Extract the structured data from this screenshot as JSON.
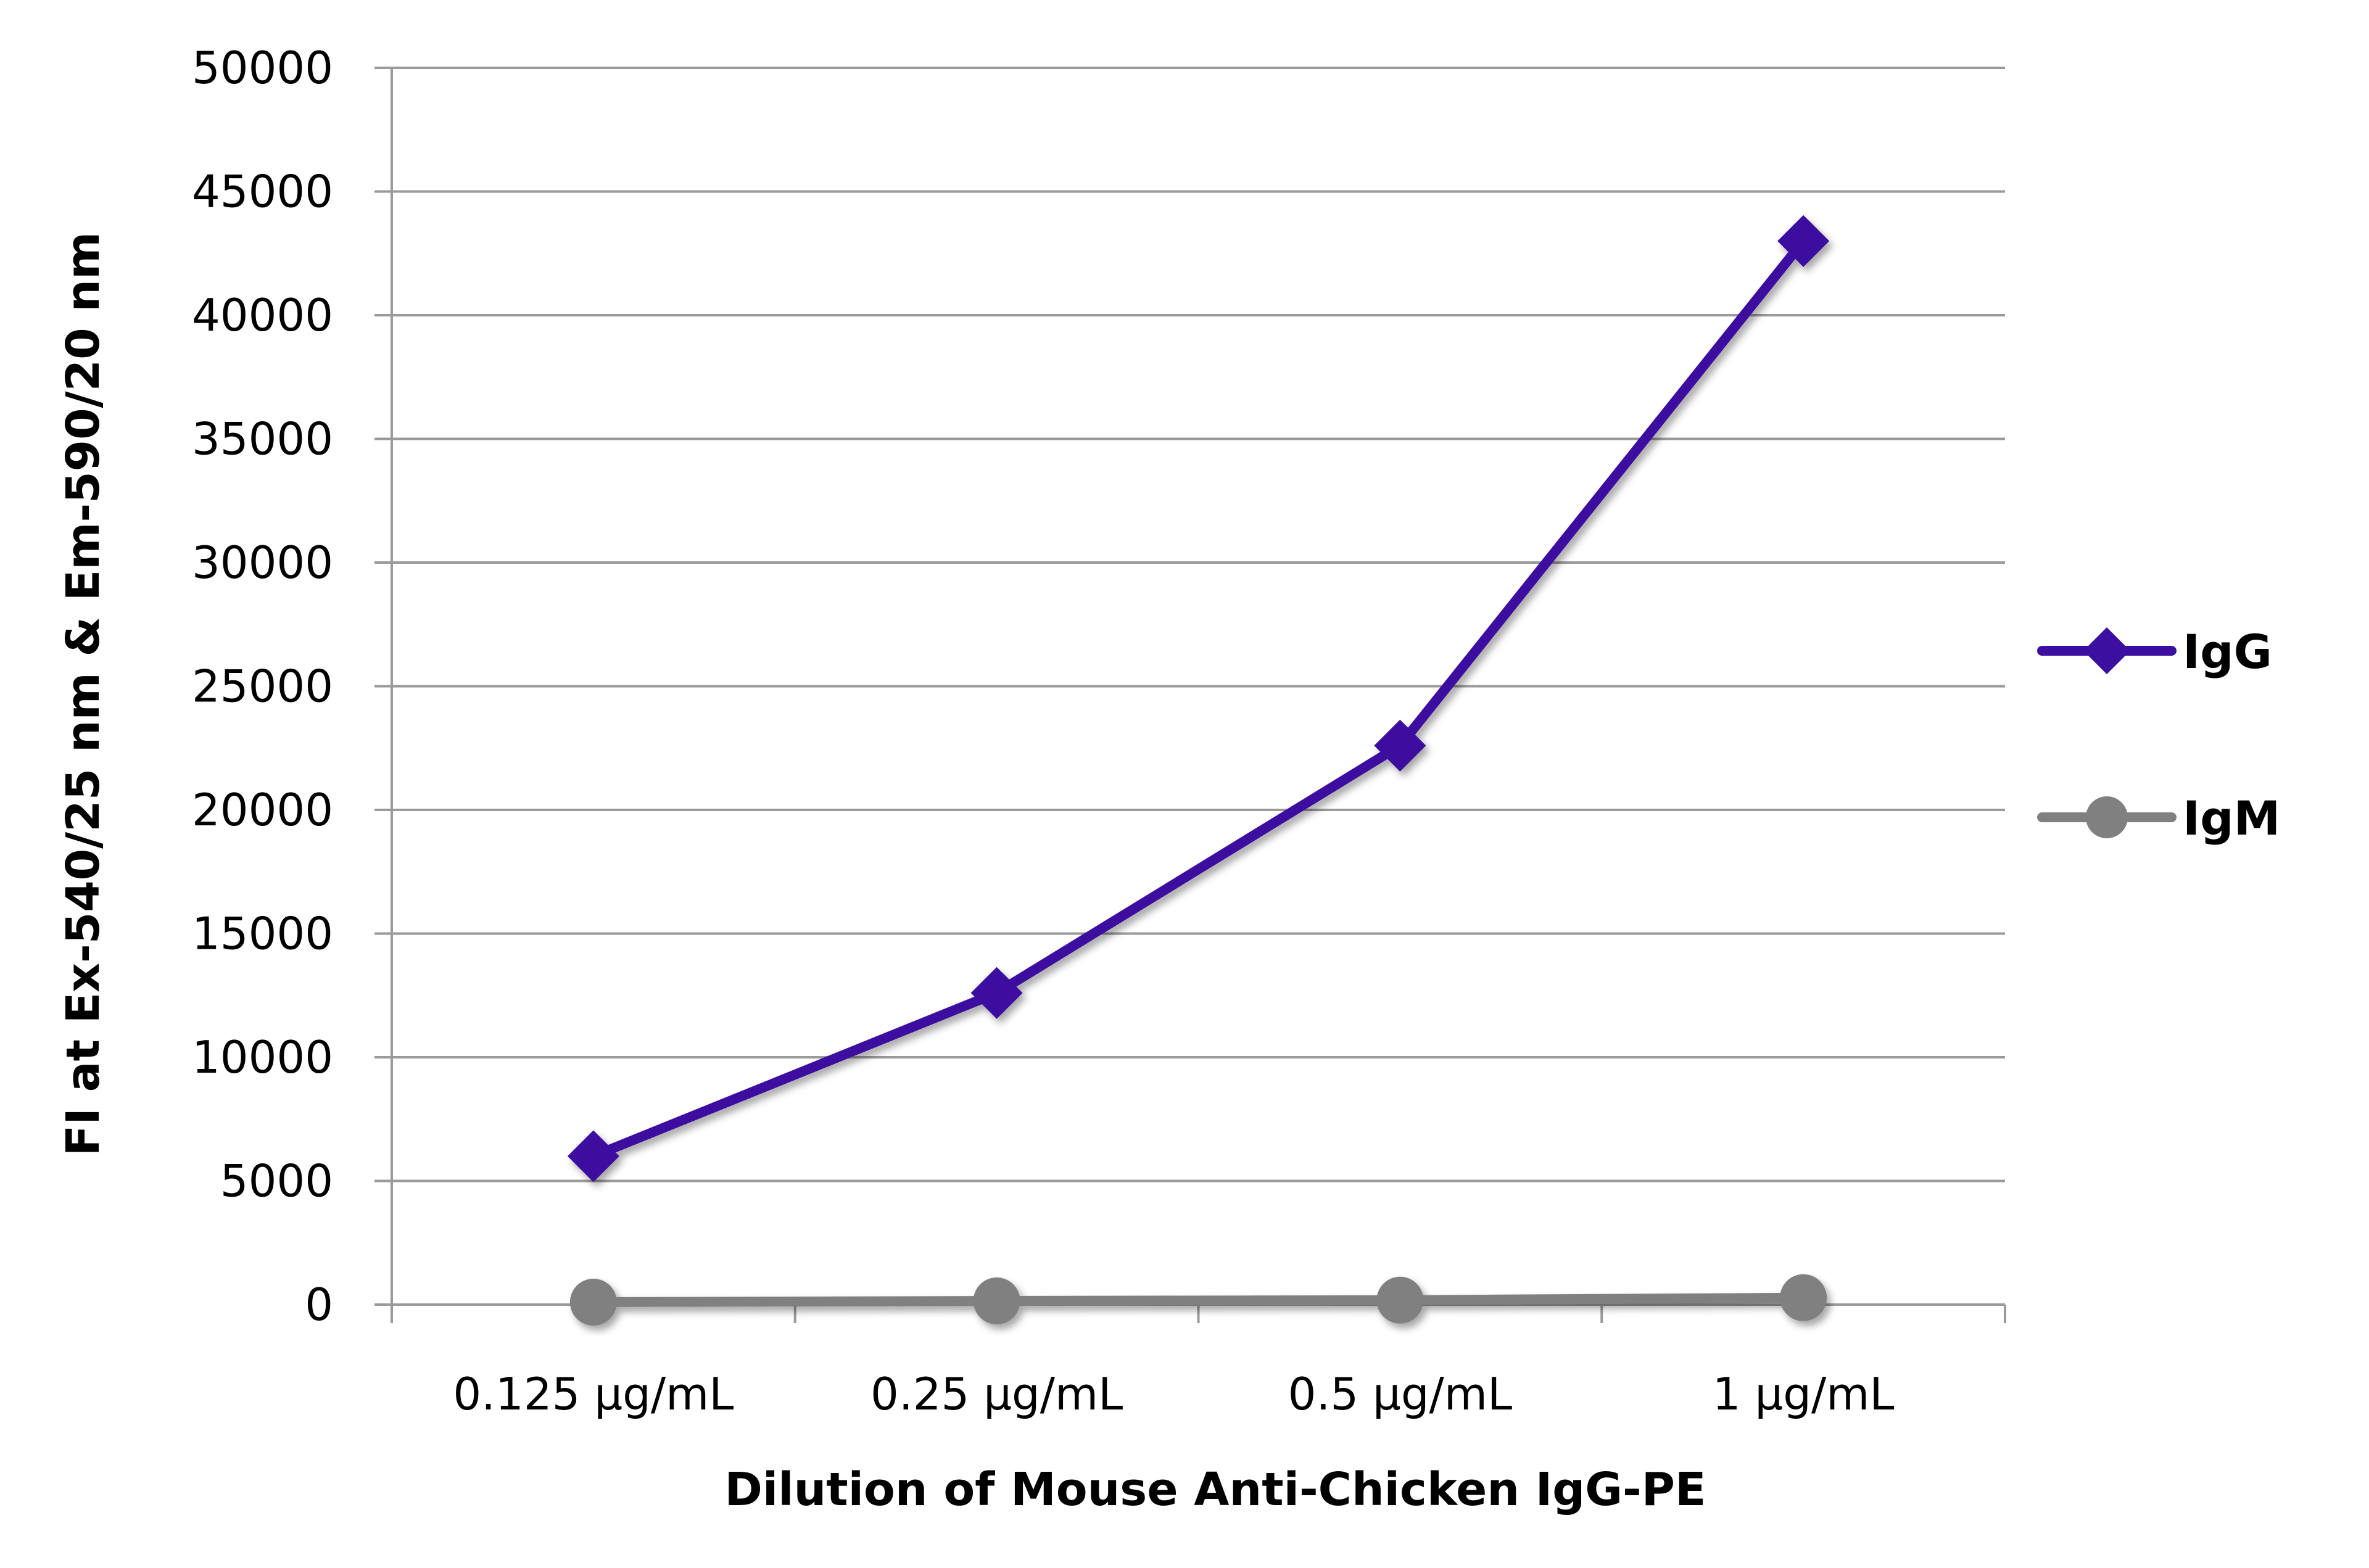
{
  "chart_data": {
    "type": "line",
    "title": "",
    "categories": [
      "0.125 µg/mL",
      "0.25 µg/mL",
      "0.5 µg/mL",
      "1 µg/mL"
    ],
    "series": [
      {
        "name": "IgG",
        "values": [
          6000,
          12600,
          22600,
          43000
        ],
        "color": "#3d0fa0",
        "marker": "diamond"
      },
      {
        "name": "IgM",
        "values": [
          100,
          150,
          180,
          280
        ],
        "color": "#808080",
        "marker": "circle"
      }
    ],
    "xlabel": "Dilution of Mouse Anti-Chicken IgG-PE",
    "ylabel": "FI at Ex-540/25 nm & Em-590/20 nm",
    "ylim": [
      0,
      50000
    ],
    "yticks": [
      0,
      5000,
      10000,
      15000,
      20000,
      25000,
      30000,
      35000,
      40000,
      45000,
      50000
    ],
    "grid": "horizontal",
    "legend_position": "right"
  }
}
